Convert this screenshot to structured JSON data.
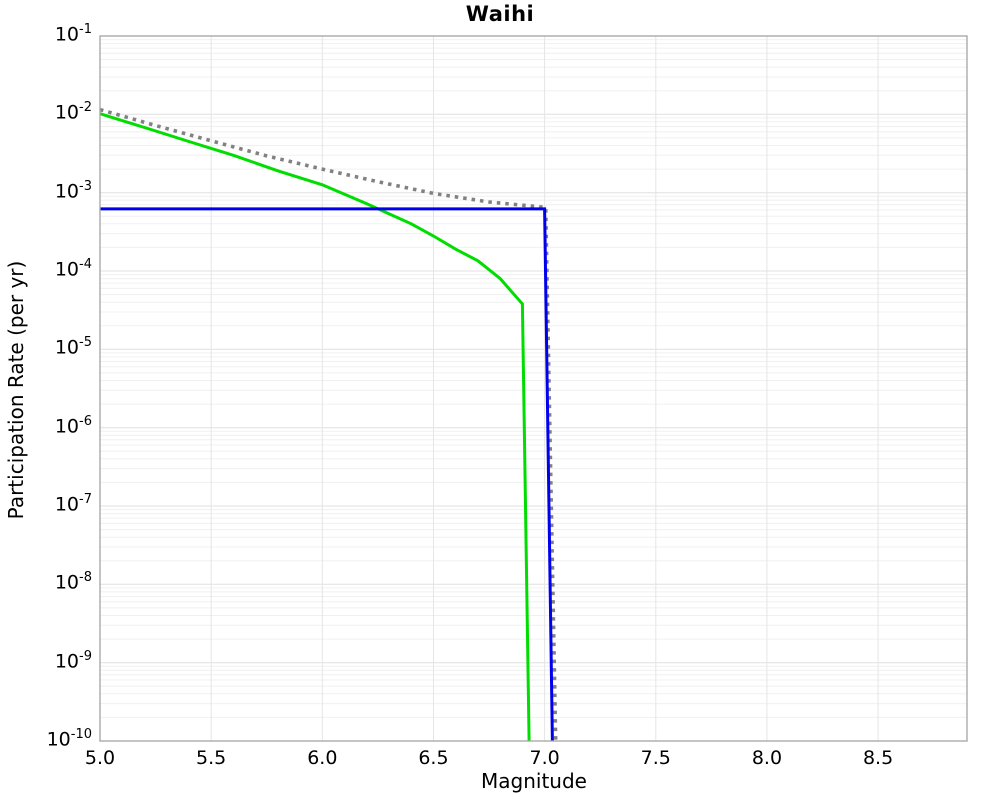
{
  "chart_data": {
    "type": "line",
    "title": "Waihi",
    "xlabel": "Magnitude",
    "ylabel": "Participation Rate (per yr)",
    "xlim": [
      5.0,
      8.9
    ],
    "ylim": [
      1e-10,
      0.1
    ],
    "yscale": "log",
    "grid": true,
    "legend_position": "none",
    "xticks": [
      "5.0",
      "5.5",
      "6.0",
      "6.5",
      "7.0",
      "7.5",
      "8.0",
      "8.5"
    ],
    "ytick_base": "10",
    "ytick_exponents": [
      -1,
      -2,
      -3,
      -4,
      -5,
      -6,
      -7,
      -8,
      -9,
      -10
    ],
    "series": [
      {
        "name": "target-gr-dotted",
        "color": "#818181",
        "style": "dotted",
        "width": 3.6,
        "points": [
          [
            5.0,
            0.0115
          ],
          [
            5.25,
            0.0072
          ],
          [
            5.5,
            0.0046
          ],
          [
            5.75,
            0.00295
          ],
          [
            6.0,
            0.002
          ],
          [
            6.25,
            0.00138
          ],
          [
            6.5,
            0.00098
          ],
          [
            6.75,
            0.00076
          ],
          [
            7.0,
            0.00065
          ],
          [
            7.005,
            0.00065
          ],
          [
            7.05,
            1e-10
          ]
        ]
      },
      {
        "name": "target-curve-green",
        "color": "#00dd00",
        "style": "solid",
        "width": 3,
        "points": [
          [
            5.0,
            0.0102
          ],
          [
            5.2,
            0.0068
          ],
          [
            5.4,
            0.0045
          ],
          [
            5.6,
            0.003
          ],
          [
            5.8,
            0.0019
          ],
          [
            6.0,
            0.00126
          ],
          [
            6.2,
            0.00072
          ],
          [
            6.4,
            0.0004
          ],
          [
            6.5,
            0.00028
          ],
          [
            6.6,
            0.00019
          ],
          [
            6.7,
            0.000135
          ],
          [
            6.8,
            8e-05
          ],
          [
            6.85,
            5.5e-05
          ],
          [
            6.9,
            3.8e-05
          ],
          [
            6.93,
            1e-10
          ]
        ]
      },
      {
        "name": "solution-rate-blue",
        "color": "#0000ee",
        "style": "solid",
        "width": 3,
        "points": [
          [
            5.0,
            0.00062
          ],
          [
            7.0,
            0.00062
          ],
          [
            7.035,
            1e-10
          ]
        ]
      }
    ]
  }
}
